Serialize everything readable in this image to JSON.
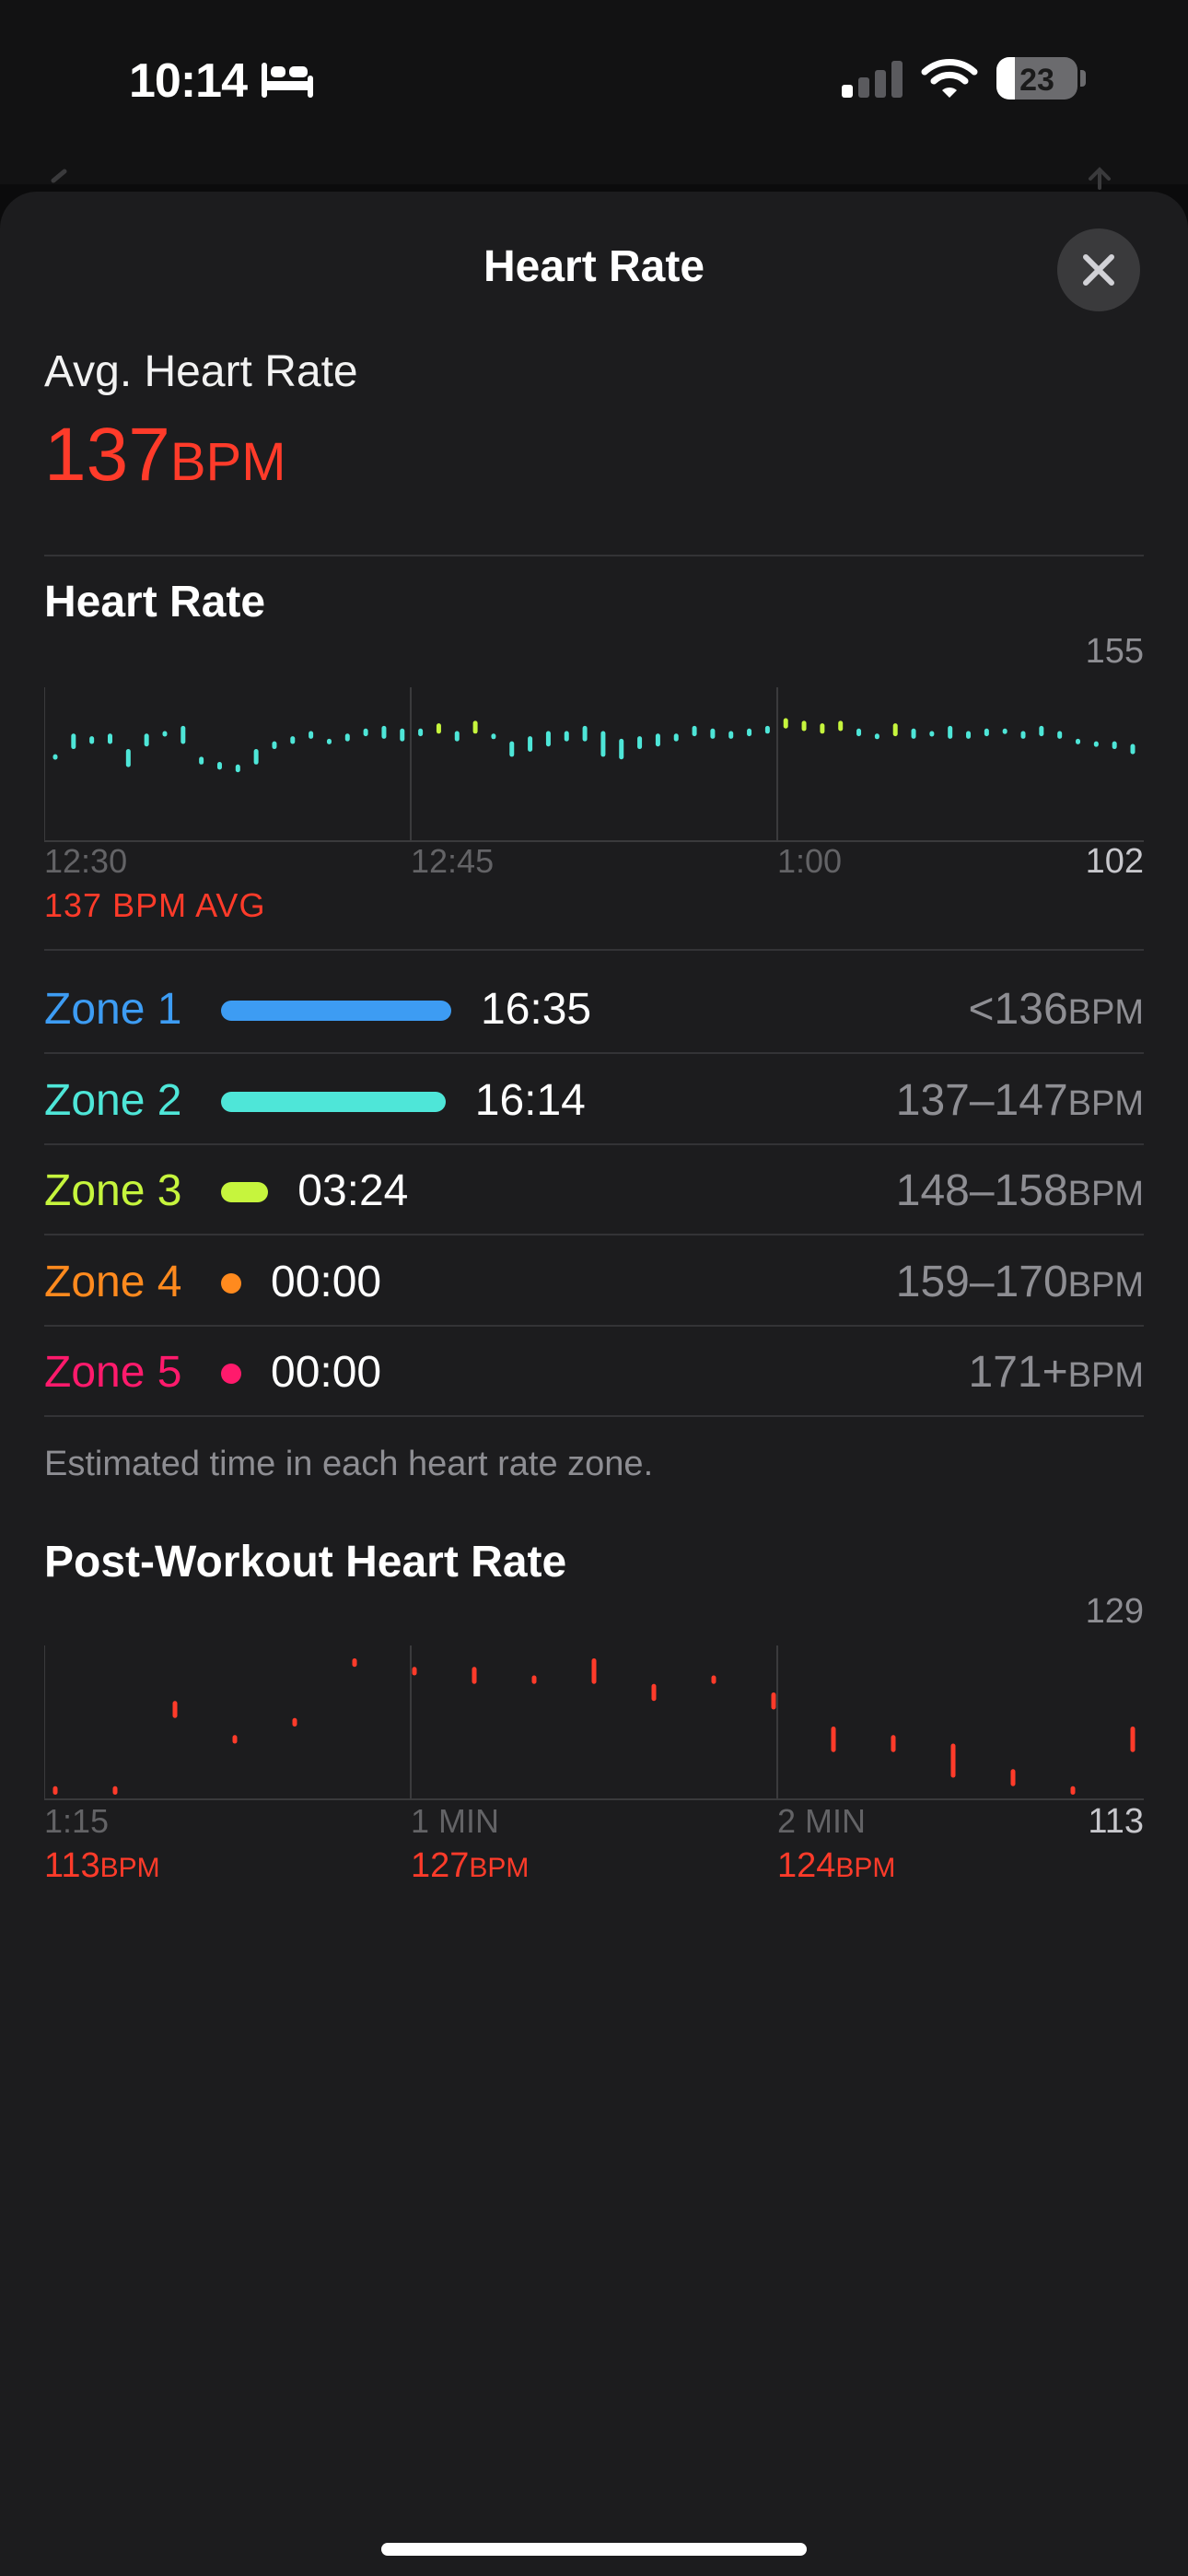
{
  "status_bar": {
    "time": "10:14",
    "battery": "23",
    "battery_level_percent": 23,
    "icons": [
      "bed-icon",
      "cellular-signal-icon",
      "wifi-icon",
      "battery-icon"
    ]
  },
  "sheet": {
    "title": "Heart Rate",
    "close_icon": "close-icon"
  },
  "average": {
    "label": "Avg. Heart Rate",
    "value": "137",
    "unit": "BPM"
  },
  "heart_rate_chart": {
    "title": "Heart Rate",
    "y_max_label": "155",
    "y_min_label": "102",
    "x_ticks": [
      "12:30",
      "12:45",
      "1:00"
    ],
    "avg_label": "137 BPM AVG",
    "colors": {
      "zone2": "#4ee6d8",
      "zone3": "#c6f53d",
      "grid": "#3a3a3c"
    }
  },
  "zones": [
    {
      "name": "Zone 1",
      "time": "16:35",
      "range": "<136",
      "unit": "BPM",
      "color": "#3d9cf3",
      "fraction": 1.0
    },
    {
      "name": "Zone 2",
      "time": "16:14",
      "range": "137–147",
      "unit": "BPM",
      "color": "#4ee6d8",
      "fraction": 0.975
    },
    {
      "name": "Zone 3",
      "time": "03:24",
      "range": "148–158",
      "unit": "BPM",
      "color": "#c6f53d",
      "fraction": 0.205
    },
    {
      "name": "Zone 4",
      "time": "00:00",
      "range": "159–170",
      "unit": "BPM",
      "color": "#ff8a1e",
      "fraction": 0
    },
    {
      "name": "Zone 5",
      "time": "00:00",
      "range": "171+",
      "unit": "BPM",
      "color": "#ff1a6c",
      "fraction": 0
    }
  ],
  "zones_caption": "Estimated time in each heart rate zone.",
  "post_workout": {
    "title": "Post-Workout Heart Rate",
    "y_max_label": "129",
    "y_min_label": "113",
    "x_ticks": [
      "1:15",
      "1 MIN",
      "2 MIN"
    ],
    "readings": [
      {
        "value": "113",
        "unit": "BPM"
      },
      {
        "value": "127",
        "unit": "BPM"
      },
      {
        "value": "124",
        "unit": "BPM"
      }
    ],
    "color": "#ff3b2a"
  },
  "chart_data": [
    {
      "type": "bar",
      "title": "Heart Rate",
      "xlabel": "",
      "ylabel": "",
      "ylim": [
        102,
        155
      ],
      "x_ticks": [
        "12:30",
        "12:45",
        "1:00"
      ],
      "average": 137,
      "series": [
        {
          "values": [
            [
              132,
              134
            ],
            [
              136,
              142
            ],
            [
              138,
              141
            ],
            [
              138,
              142
            ],
            [
              129,
              136
            ],
            [
              137,
              142
            ],
            [
              142,
              143
            ],
            [
              138,
              145
            ],
            [
              130,
              133
            ],
            [
              128,
              131
            ],
            [
              127,
              130
            ],
            [
              130,
              136
            ],
            [
              136,
              139
            ],
            [
              138,
              141
            ],
            [
              140,
              143
            ],
            [
              138,
              140
            ],
            [
              139,
              142
            ],
            [
              141,
              144
            ],
            [
              140,
              145
            ],
            [
              139,
              144
            ],
            [
              141,
              144
            ],
            [
              142,
              146
            ],
            [
              139,
              143
            ],
            [
              142,
              147
            ],
            [
              140,
              142
            ],
            [
              133,
              139
            ],
            [
              135,
              141
            ],
            [
              137,
              143
            ],
            [
              139,
              143
            ],
            [
              139,
              145
            ],
            [
              133,
              143
            ],
            [
              132,
              140
            ],
            [
              136,
              141
            ],
            [
              137,
              142
            ],
            [
              139,
              142
            ],
            [
              141,
              145
            ],
            [
              140,
              144
            ],
            [
              140,
              143
            ],
            [
              141,
              144
            ],
            [
              142,
              145
            ],
            [
              144,
              148
            ],
            [
              143,
              147
            ],
            [
              142,
              146
            ],
            [
              143,
              147
            ],
            [
              141,
              144
            ],
            [
              140,
              142
            ],
            [
              141,
              146
            ],
            [
              140,
              144
            ],
            [
              141,
              143
            ],
            [
              140,
              145
            ],
            [
              140,
              143
            ],
            [
              141,
              144
            ],
            [
              142,
              144
            ],
            [
              140,
              143
            ],
            [
              141,
              145
            ],
            [
              140,
              143
            ],
            [
              138,
              140
            ],
            [
              137,
              139
            ],
            [
              136,
              139
            ],
            [
              134,
              138
            ]
          ]
        }
      ]
    },
    {
      "type": "bar",
      "title": "Post-Workout Heart Rate",
      "xlabel": "",
      "ylabel": "",
      "ylim": [
        113,
        129
      ],
      "x_ticks": [
        "1:15",
        "1 MIN",
        "2 MIN"
      ],
      "series": [
        {
          "values": [
            [
              113,
              114
            ],
            [
              113,
              114
            ],
            [
              122,
              124
            ],
            [
              119,
              120
            ],
            [
              121,
              122
            ],
            [
              128,
              129
            ],
            [
              127,
              128
            ],
            [
              126,
              128
            ],
            [
              126,
              127
            ],
            [
              126,
              129
            ],
            [
              124,
              126
            ],
            [
              126,
              127
            ],
            [
              123,
              125
            ],
            [
              118,
              121
            ],
            [
              118,
              120
            ],
            [
              115,
              119
            ],
            [
              114,
              116
            ],
            [
              113,
              114
            ],
            [
              118,
              121
            ]
          ]
        }
      ]
    }
  ]
}
